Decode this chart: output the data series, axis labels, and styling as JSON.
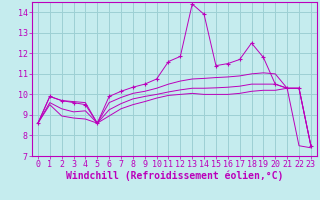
{
  "xlabel": "Windchill (Refroidissement éolien,°C)",
  "xlim": [
    -0.5,
    23.5
  ],
  "ylim": [
    7,
    14.5
  ],
  "yticks": [
    7,
    8,
    9,
    10,
    11,
    12,
    13,
    14
  ],
  "xticks": [
    0,
    1,
    2,
    3,
    4,
    5,
    6,
    7,
    8,
    9,
    10,
    11,
    12,
    13,
    14,
    15,
    16,
    17,
    18,
    19,
    20,
    21,
    22,
    23
  ],
  "background_color": "#c5ecee",
  "grid_color": "#9dd0d4",
  "line_color": "#bb00bb",
  "lines": [
    {
      "x": [
        0,
        1,
        2,
        3,
        4,
        5,
        6,
        7,
        8,
        9,
        10,
        11,
        12,
        13,
        14,
        15,
        16,
        17,
        18,
        19,
        20,
        21,
        22,
        23
      ],
      "y": [
        8.6,
        9.9,
        9.7,
        9.6,
        9.5,
        8.6,
        9.9,
        10.15,
        10.35,
        10.5,
        10.75,
        11.6,
        11.85,
        14.4,
        13.9,
        11.4,
        11.5,
        11.7,
        12.5,
        11.8,
        10.5,
        10.3,
        10.3,
        7.5
      ],
      "marker": true
    },
    {
      "x": [
        0,
        1,
        2,
        3,
        4,
        5,
        6,
        7,
        8,
        9,
        10,
        11,
        12,
        13,
        14,
        15,
        16,
        17,
        18,
        19,
        20,
        21,
        22,
        23
      ],
      "y": [
        8.6,
        9.9,
        9.7,
        9.65,
        9.6,
        8.6,
        9.6,
        9.85,
        10.05,
        10.15,
        10.3,
        10.5,
        10.65,
        10.75,
        10.78,
        10.82,
        10.85,
        10.9,
        11.0,
        11.05,
        11.0,
        10.3,
        10.3,
        7.5
      ],
      "marker": false
    },
    {
      "x": [
        0,
        1,
        2,
        3,
        4,
        5,
        6,
        7,
        8,
        9,
        10,
        11,
        12,
        13,
        14,
        15,
        16,
        17,
        18,
        19,
        20,
        21,
        22,
        23
      ],
      "y": [
        8.6,
        9.6,
        9.3,
        9.15,
        9.2,
        8.6,
        9.25,
        9.55,
        9.78,
        9.9,
        10.0,
        10.12,
        10.22,
        10.3,
        10.3,
        10.32,
        10.35,
        10.4,
        10.5,
        10.5,
        10.5,
        10.3,
        10.3,
        7.5
      ],
      "marker": false
    },
    {
      "x": [
        0,
        1,
        2,
        3,
        4,
        5,
        6,
        7,
        8,
        9,
        10,
        11,
        12,
        13,
        14,
        15,
        16,
        17,
        18,
        19,
        20,
        21,
        22,
        23
      ],
      "y": [
        8.6,
        9.5,
        8.95,
        8.85,
        8.8,
        8.6,
        8.95,
        9.3,
        9.5,
        9.65,
        9.82,
        9.95,
        10.0,
        10.05,
        10.0,
        10.0,
        10.0,
        10.05,
        10.15,
        10.2,
        10.2,
        10.3,
        7.5,
        7.4
      ],
      "marker": false
    }
  ],
  "tick_fontsize": 6,
  "label_fontsize": 7
}
